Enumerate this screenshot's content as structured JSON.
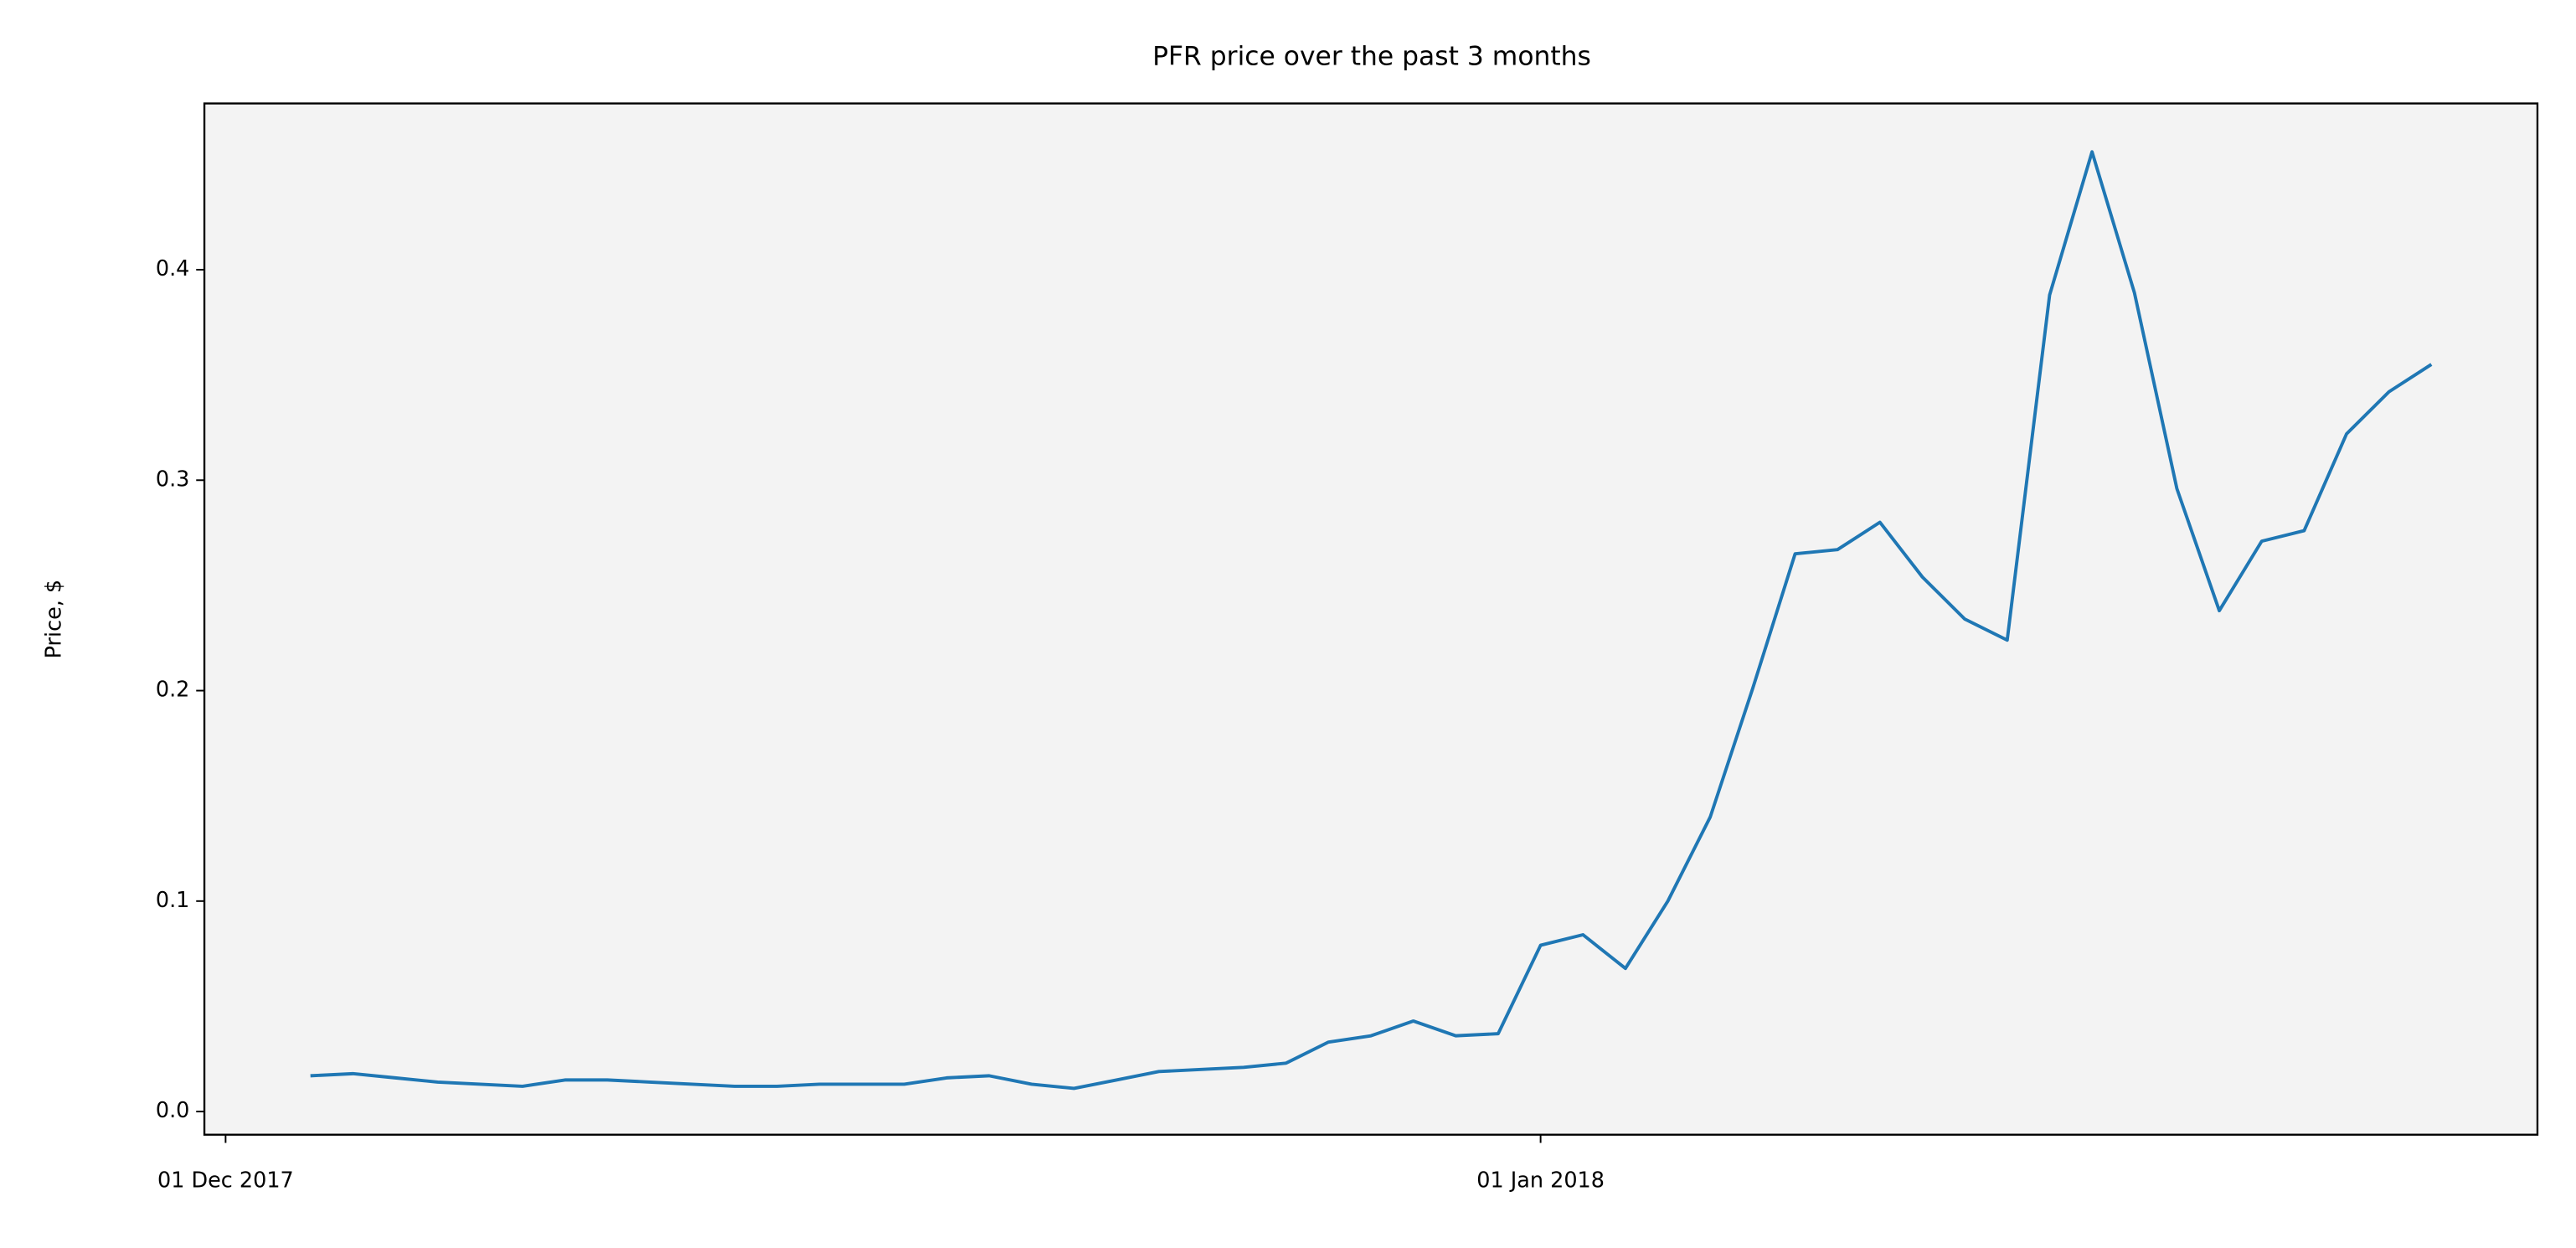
{
  "chart_data": {
    "type": "line",
    "title": "PFR price over the past 3 months",
    "y_label": "Price, $",
    "x": [
      "2017-12-03",
      "2017-12-04",
      "2017-12-05",
      "2017-12-06",
      "2017-12-07",
      "2017-12-08",
      "2017-12-09",
      "2017-12-10",
      "2017-12-11",
      "2017-12-12",
      "2017-12-13",
      "2017-12-14",
      "2017-12-15",
      "2017-12-16",
      "2017-12-17",
      "2017-12-18",
      "2017-12-19",
      "2017-12-20",
      "2017-12-21",
      "2017-12-22",
      "2017-12-23",
      "2017-12-24",
      "2017-12-25",
      "2017-12-26",
      "2017-12-27",
      "2017-12-28",
      "2017-12-29",
      "2017-12-30",
      "2017-12-31",
      "2018-01-01",
      "2018-01-02",
      "2018-01-03",
      "2018-01-04",
      "2018-01-05",
      "2018-01-06",
      "2018-01-07",
      "2018-01-08",
      "2018-01-09",
      "2018-01-10",
      "2018-01-11",
      "2018-01-12",
      "2018-01-13",
      "2018-01-14",
      "2018-01-15",
      "2018-01-16",
      "2018-01-17",
      "2018-01-18",
      "2018-01-19",
      "2018-01-20",
      "2018-01-21",
      "2018-01-22"
    ],
    "series": [
      {
        "color": "#1f77b4",
        "values": [
          0.017,
          0.018,
          0.016,
          0.014,
          0.013,
          0.012,
          0.015,
          0.015,
          0.014,
          0.013,
          0.012,
          0.012,
          0.013,
          0.013,
          0.013,
          0.016,
          0.017,
          0.013,
          0.011,
          0.015,
          0.019,
          0.02,
          0.021,
          0.023,
          0.033,
          0.036,
          0.043,
          0.036,
          0.037,
          0.079,
          0.084,
          0.068,
          0.1,
          0.14,
          0.201,
          0.265,
          0.267,
          0.28,
          0.254,
          0.234,
          0.224,
          0.388,
          0.456,
          0.389,
          0.296,
          0.238,
          0.271,
          0.276,
          0.322,
          0.342,
          0.355
        ]
      }
    ],
    "xlim": [
      "2017-11-30T12:00:00Z",
      "2018-01-24T12:00:00Z"
    ],
    "xticks": [
      {
        "value": "2017-12-01",
        "label": "01 Dec 2017"
      },
      {
        "value": "2018-01-01",
        "label": "01 Jan 2018"
      }
    ],
    "ylim": [
      -0.011,
      0.479
    ],
    "yticks": [
      {
        "value": 0,
        "label": "0.0"
      },
      {
        "value": 0.1,
        "label": "0.1"
      },
      {
        "value": 0.2,
        "label": "0.2"
      },
      {
        "value": 0.3,
        "label": "0.3"
      },
      {
        "value": 0.4,
        "label": "0.4"
      }
    ],
    "background": "#f3f3f3"
  }
}
